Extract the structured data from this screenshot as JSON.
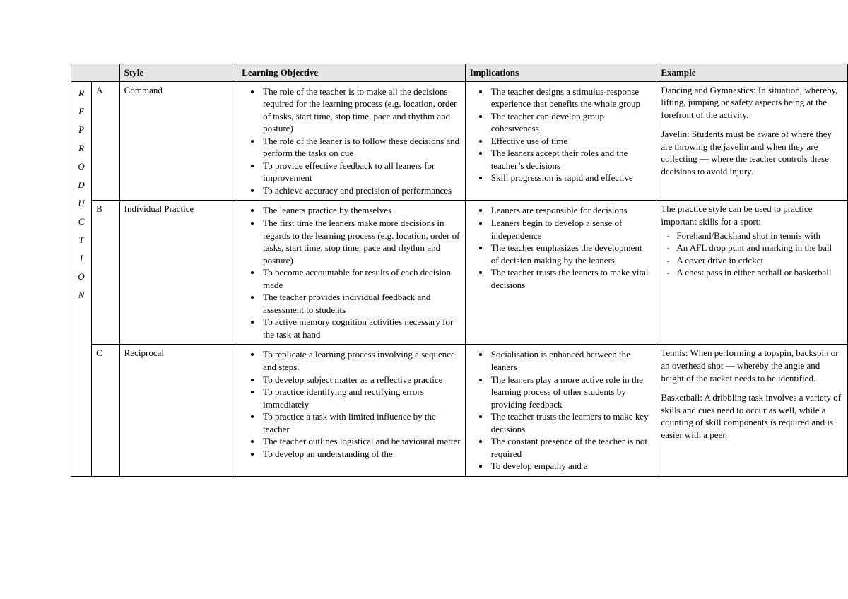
{
  "headers": {
    "style": "Style",
    "objective": "Learning Objective",
    "implications": "Implications",
    "example": "Example"
  },
  "categoryLetters": [
    "R",
    "E",
    "P",
    "R",
    "O",
    "D",
    "U",
    "C",
    "T",
    "I",
    "O",
    "N"
  ],
  "rows": [
    {
      "letter": "A",
      "style": "Command",
      "objectives": [
        "The role of the teacher is to make all the decisions required for the learning process (e.g. location, order of tasks, start time, stop time, pace and rhythm and posture)",
        "The role of the leaner is to follow these decisions and perform the tasks on cue",
        "To provide effective feedback to all leaners for improvement",
        "To achieve accuracy and precision of performances"
      ],
      "implications": [
        "The teacher designs a stimulus-response experience that benefits the whole group",
        "The teacher can develop group cohesiveness",
        "Effective use of time",
        "The leaners accept their roles and the teacher’s decisions",
        "Skill progression is rapid and effective"
      ],
      "exampleParas": [
        "Dancing and Gymnastics: In situation, whereby, lifting, jumping or safety aspects being at the forefront of the activity.",
        "Javelin: Students must be aware of where they are throwing the javelin and when they are collecting — where the teacher controls these decisions to avoid injury."
      ]
    },
    {
      "letter": "B",
      "style": "Individual Practice",
      "objectives": [
        "The leaners practice by themselves",
        "The first time the leaners make more decisions in regards to the learning process (e.g. location, order of tasks, start time, stop time, pace and rhythm and posture)",
        "To become accountable for results of each decision made",
        "The teacher provides individual feedback and assessment to students",
        "To active memory cognition activities necessary for the task at hand"
      ],
      "implications": [
        "Leaners are responsible for decisions",
        "Leaners begin to develop a sense of independence",
        "The teacher emphasizes the development of decision making by the leaners",
        "The teacher trusts the leaners to make vital decisions"
      ],
      "exampleIntro": "The practice style can be used to practice important skills for a sport:",
      "exampleList": [
        "Forehand/Backhand shot in tennis with",
        "An AFL drop punt and marking in the ball",
        "A cover drive in cricket",
        "A chest pass in either netball or basketball"
      ]
    },
    {
      "letter": "C",
      "style": "Reciprocal",
      "objectives": [
        "To replicate a learning process involving a sequence and steps.",
        "To develop subject matter as a reflective practice",
        "To practice identifying and rectifying errors immediately",
        "To practice a task with limited influence by the teacher",
        "The teacher outlines logistical and behavioural matter",
        "To develop an understanding of the"
      ],
      "implications": [
        "Socialisation is enhanced between the leaners",
        "The leaners play a more active role in the learning process of other students by providing feedback",
        "The teacher trusts the learners to make key decisions",
        "The constant presence of the teacher is not required",
        "To develop empathy and a"
      ],
      "exampleParas": [
        "Tennis: When performing a topspin, backspin or an overhead shot — whereby the angle and height of the racket needs to be identified.",
        "Basketball: A dribbling task involves a variety of skills and cues need to occur as well, while a counting of skill components is required and is easier with a peer."
      ]
    }
  ]
}
